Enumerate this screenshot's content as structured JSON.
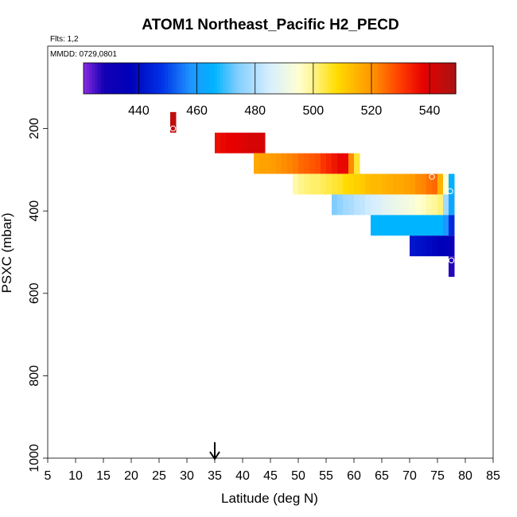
{
  "chart_data": {
    "type": "heatmap",
    "title": "ATOM1 Northeast_Pacific H2_PECD",
    "flights_note": "Flts: 1,2",
    "date_note": "MMDD: 0729,0801",
    "xlabel": "Latitude (deg N)",
    "ylabel": "PSXC (mbar)",
    "xlim": [
      5,
      85
    ],
    "ylim": [
      1000,
      0
    ],
    "x_ticks": [
      "5",
      "10",
      "15",
      "20",
      "25",
      "30",
      "35",
      "40",
      "45",
      "50",
      "55",
      "60",
      "65",
      "70",
      "75",
      "80",
      "85"
    ],
    "y_ticks": [
      "200",
      "400",
      "600",
      "800",
      "1000"
    ],
    "colorbar": {
      "range": [
        421,
        549
      ],
      "ticks": [
        "440",
        "460",
        "480",
        "500",
        "520",
        "540"
      ]
    },
    "arrow_latitude": 35,
    "cells": [
      {
        "lat_min": 27.0,
        "lat_max": 28.0,
        "p_min": 160,
        "p_max": 210,
        "values": [
          545
        ]
      },
      {
        "lat_min": 35.0,
        "lat_max": 44.0,
        "p_min": 210,
        "p_max": 260,
        "values": [
          536,
          537,
          538,
          538,
          539,
          540,
          541,
          541,
          541
        ]
      },
      {
        "lat_min": 42.0,
        "lat_max": 61.0,
        "p_min": 260,
        "p_max": 310,
        "values": [
          517,
          518,
          518,
          519,
          520,
          521,
          522,
          523,
          525,
          526,
          527,
          528,
          531,
          533,
          535,
          537,
          537,
          521,
          505
        ]
      },
      {
        "lat_min": 49.0,
        "lat_max": 78.0,
        "p_min": 310,
        "p_max": 360,
        "values": [
          498,
          500,
          501,
          502,
          502,
          503,
          504,
          505,
          506,
          508,
          509,
          510,
          511,
          513,
          514,
          514,
          515,
          516,
          517,
          517,
          518,
          519,
          521,
          522,
          524,
          525,
          515,
          495,
          465
        ]
      },
      {
        "lat_min": 56.0,
        "lat_max": 78.0,
        "p_min": 360,
        "p_max": 410,
        "values": [
          474,
          476,
          478,
          479,
          481,
          482,
          484,
          485,
          486,
          488,
          489,
          490,
          491,
          492,
          493,
          495,
          496,
          498,
          499,
          501,
          478,
          462
        ]
      },
      {
        "lat_min": 63.0,
        "lat_max": 78.0,
        "p_min": 410,
        "p_max": 460,
        "values": [
          466,
          466,
          466,
          466,
          466,
          466,
          466,
          466,
          466,
          466,
          466,
          466,
          466,
          458,
          446
        ]
      },
      {
        "lat_min": 70.0,
        "lat_max": 78.0,
        "p_min": 460,
        "p_max": 510,
        "values": [
          442,
          441,
          440,
          439,
          438,
          437,
          436,
          434
        ]
      },
      {
        "lat_min": 77.0,
        "lat_max": 78.0,
        "p_min": 510,
        "p_max": 560,
        "values": [
          427
        ]
      }
    ],
    "markers": [
      {
        "lat": 27.5,
        "p": 200
      },
      {
        "lat": 74.0,
        "p": 317
      },
      {
        "lat": 77.3,
        "p": 352
      },
      {
        "lat": 77.5,
        "p": 520
      }
    ]
  }
}
